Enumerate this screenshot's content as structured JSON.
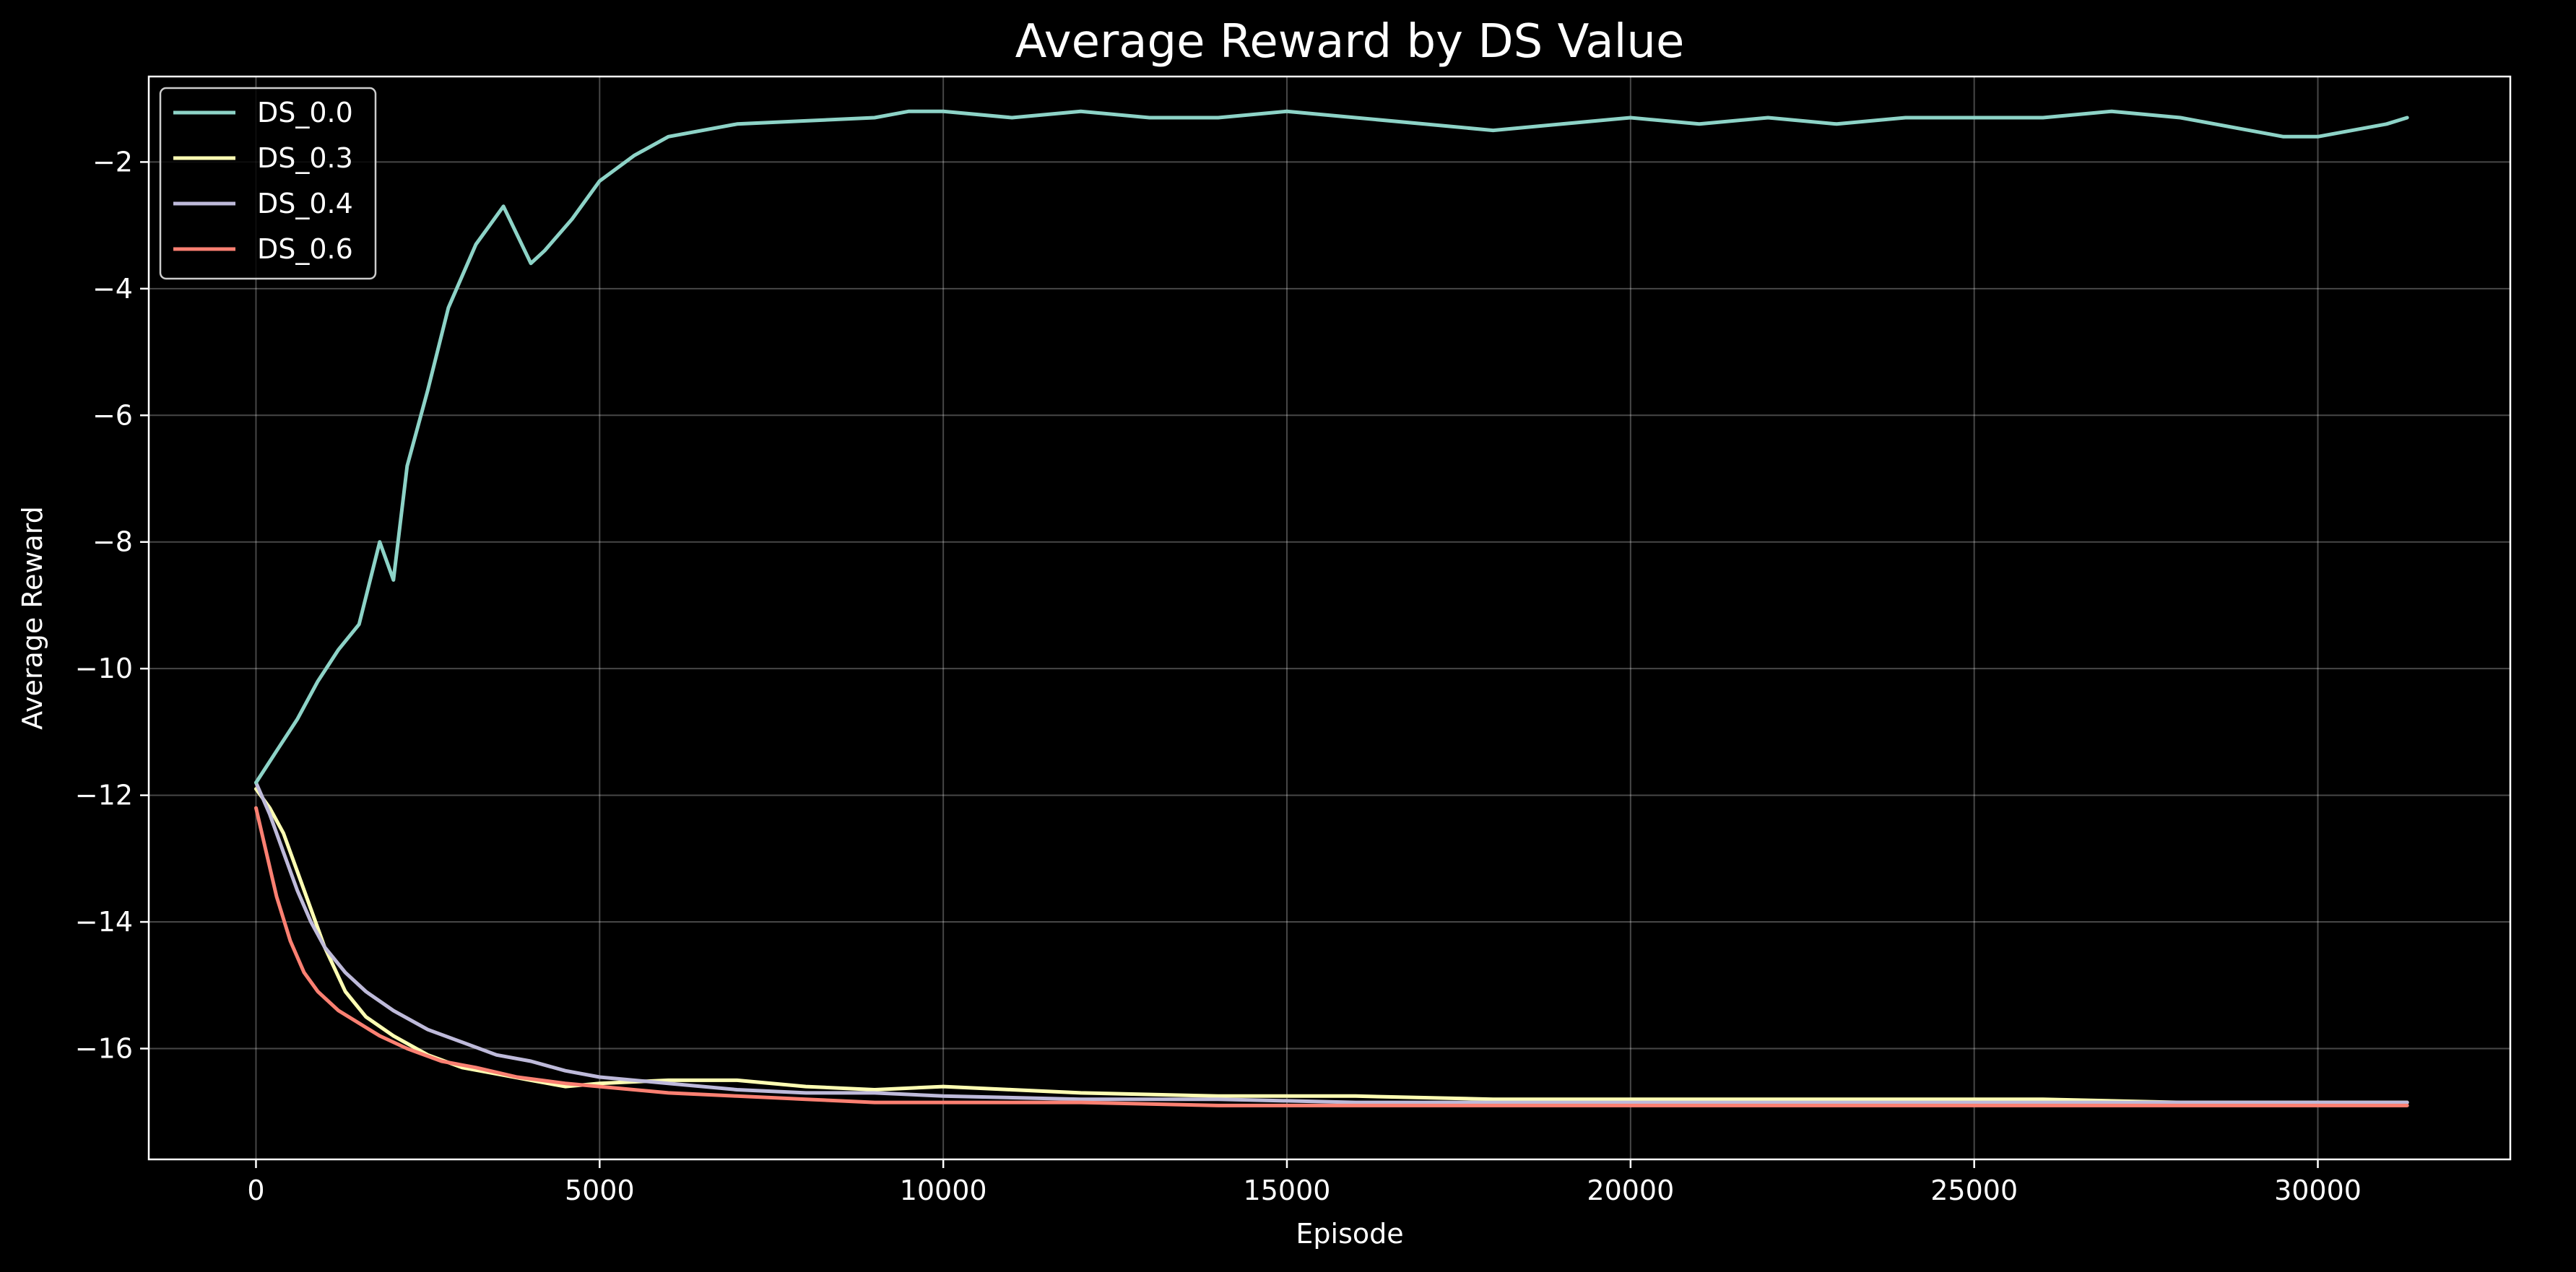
{
  "chart_data": {
    "type": "line",
    "title": "Average Reward by DS Value",
    "xlabel": "Episode",
    "ylabel": "Average Reward",
    "xlim": [
      -1560,
      32800
    ],
    "ylim": [
      -17.75,
      -0.65
    ],
    "xticks": [
      0,
      5000,
      10000,
      15000,
      20000,
      25000,
      30000
    ],
    "xtick_labels": [
      "0",
      "5000",
      "10000",
      "15000",
      "20000",
      "25000",
      "30000"
    ],
    "yticks": [
      -2,
      -4,
      -6,
      -8,
      -10,
      -12,
      -14,
      -16
    ],
    "ytick_labels": [
      "−2",
      "−4",
      "−6",
      "−8",
      "−10",
      "−12",
      "−14",
      "−16"
    ],
    "grid": true,
    "legend_position": "top-left",
    "background": "#000000",
    "series": [
      {
        "name": "DS_0.0",
        "color": "#8dd3c7",
        "x": [
          0,
          300,
          600,
          900,
          1200,
          1500,
          1800,
          2000,
          2200,
          2500,
          2800,
          3200,
          3600,
          4000,
          4200,
          4600,
          5000,
          5500,
          6000,
          7000,
          8000,
          9000,
          9500,
          10000,
          11000,
          12000,
          13000,
          14000,
          15000,
          16000,
          17000,
          18000,
          19000,
          20000,
          21000,
          22000,
          23000,
          24000,
          25000,
          26000,
          27000,
          28000,
          29000,
          29500,
          30000,
          30500,
          31000,
          31300
        ],
        "y": [
          -11.8,
          -11.3,
          -10.8,
          -10.2,
          -9.7,
          -9.3,
          -8.0,
          -8.6,
          -6.8,
          -5.6,
          -4.3,
          -3.3,
          -2.7,
          -3.6,
          -3.4,
          -2.9,
          -2.3,
          -1.9,
          -1.6,
          -1.4,
          -1.35,
          -1.3,
          -1.2,
          -1.2,
          -1.3,
          -1.2,
          -1.3,
          -1.3,
          -1.2,
          -1.3,
          -1.4,
          -1.5,
          -1.4,
          -1.3,
          -1.4,
          -1.3,
          -1.4,
          -1.3,
          -1.3,
          -1.3,
          -1.2,
          -1.3,
          -1.5,
          -1.6,
          -1.6,
          -1.5,
          -1.4,
          -1.3
        ]
      },
      {
        "name": "DS_0.3",
        "color": "#ffffb3",
        "x": [
          0,
          200,
          400,
          600,
          800,
          1000,
          1300,
          1600,
          2000,
          2500,
          3000,
          3500,
          4000,
          4500,
          5000,
          6000,
          7000,
          8000,
          9000,
          10000,
          11000,
          12000,
          14000,
          16000,
          18000,
          20000,
          22000,
          24000,
          26000,
          28000,
          30000,
          31300
        ],
        "y": [
          -11.9,
          -12.2,
          -12.6,
          -13.2,
          -13.8,
          -14.4,
          -15.1,
          -15.5,
          -15.8,
          -16.1,
          -16.3,
          -16.4,
          -16.5,
          -16.6,
          -16.55,
          -16.5,
          -16.5,
          -16.6,
          -16.65,
          -16.6,
          -16.65,
          -16.7,
          -16.75,
          -16.75,
          -16.8,
          -16.8,
          -16.8,
          -16.8,
          -16.8,
          -16.85,
          -16.85,
          -16.85
        ]
      },
      {
        "name": "DS_0.4",
        "color": "#bebada",
        "x": [
          0,
          200,
          400,
          600,
          800,
          1000,
          1300,
          1600,
          2000,
          2500,
          3000,
          3500,
          4000,
          4500,
          5000,
          6000,
          7000,
          8000,
          9000,
          10000,
          12000,
          14000,
          16000,
          18000,
          20000,
          22000,
          24000,
          26000,
          28000,
          30000,
          31300
        ],
        "y": [
          -11.8,
          -12.3,
          -12.9,
          -13.5,
          -14.0,
          -14.4,
          -14.8,
          -15.1,
          -15.4,
          -15.7,
          -15.9,
          -16.1,
          -16.2,
          -16.35,
          -16.45,
          -16.55,
          -16.65,
          -16.7,
          -16.7,
          -16.75,
          -16.8,
          -16.8,
          -16.85,
          -16.85,
          -16.85,
          -16.85,
          -16.85,
          -16.85,
          -16.85,
          -16.85,
          -16.85
        ]
      },
      {
        "name": "DS_0.6",
        "color": "#fb8072",
        "x": [
          0,
          150,
          300,
          500,
          700,
          900,
          1200,
          1500,
          1800,
          2200,
          2700,
          3200,
          3800,
          4500,
          5000,
          6000,
          7000,
          8000,
          9000,
          10000,
          12000,
          14000,
          16000,
          18000,
          20000,
          22000,
          24000,
          26000,
          28000,
          30000,
          31300
        ],
        "y": [
          -12.2,
          -12.9,
          -13.6,
          -14.3,
          -14.8,
          -15.1,
          -15.4,
          -15.6,
          -15.8,
          -16.0,
          -16.2,
          -16.3,
          -16.45,
          -16.55,
          -16.6,
          -16.7,
          -16.75,
          -16.8,
          -16.85,
          -16.85,
          -16.85,
          -16.9,
          -16.9,
          -16.9,
          -16.9,
          -16.9,
          -16.9,
          -16.9,
          -16.9,
          -16.9,
          -16.9
        ]
      }
    ]
  }
}
